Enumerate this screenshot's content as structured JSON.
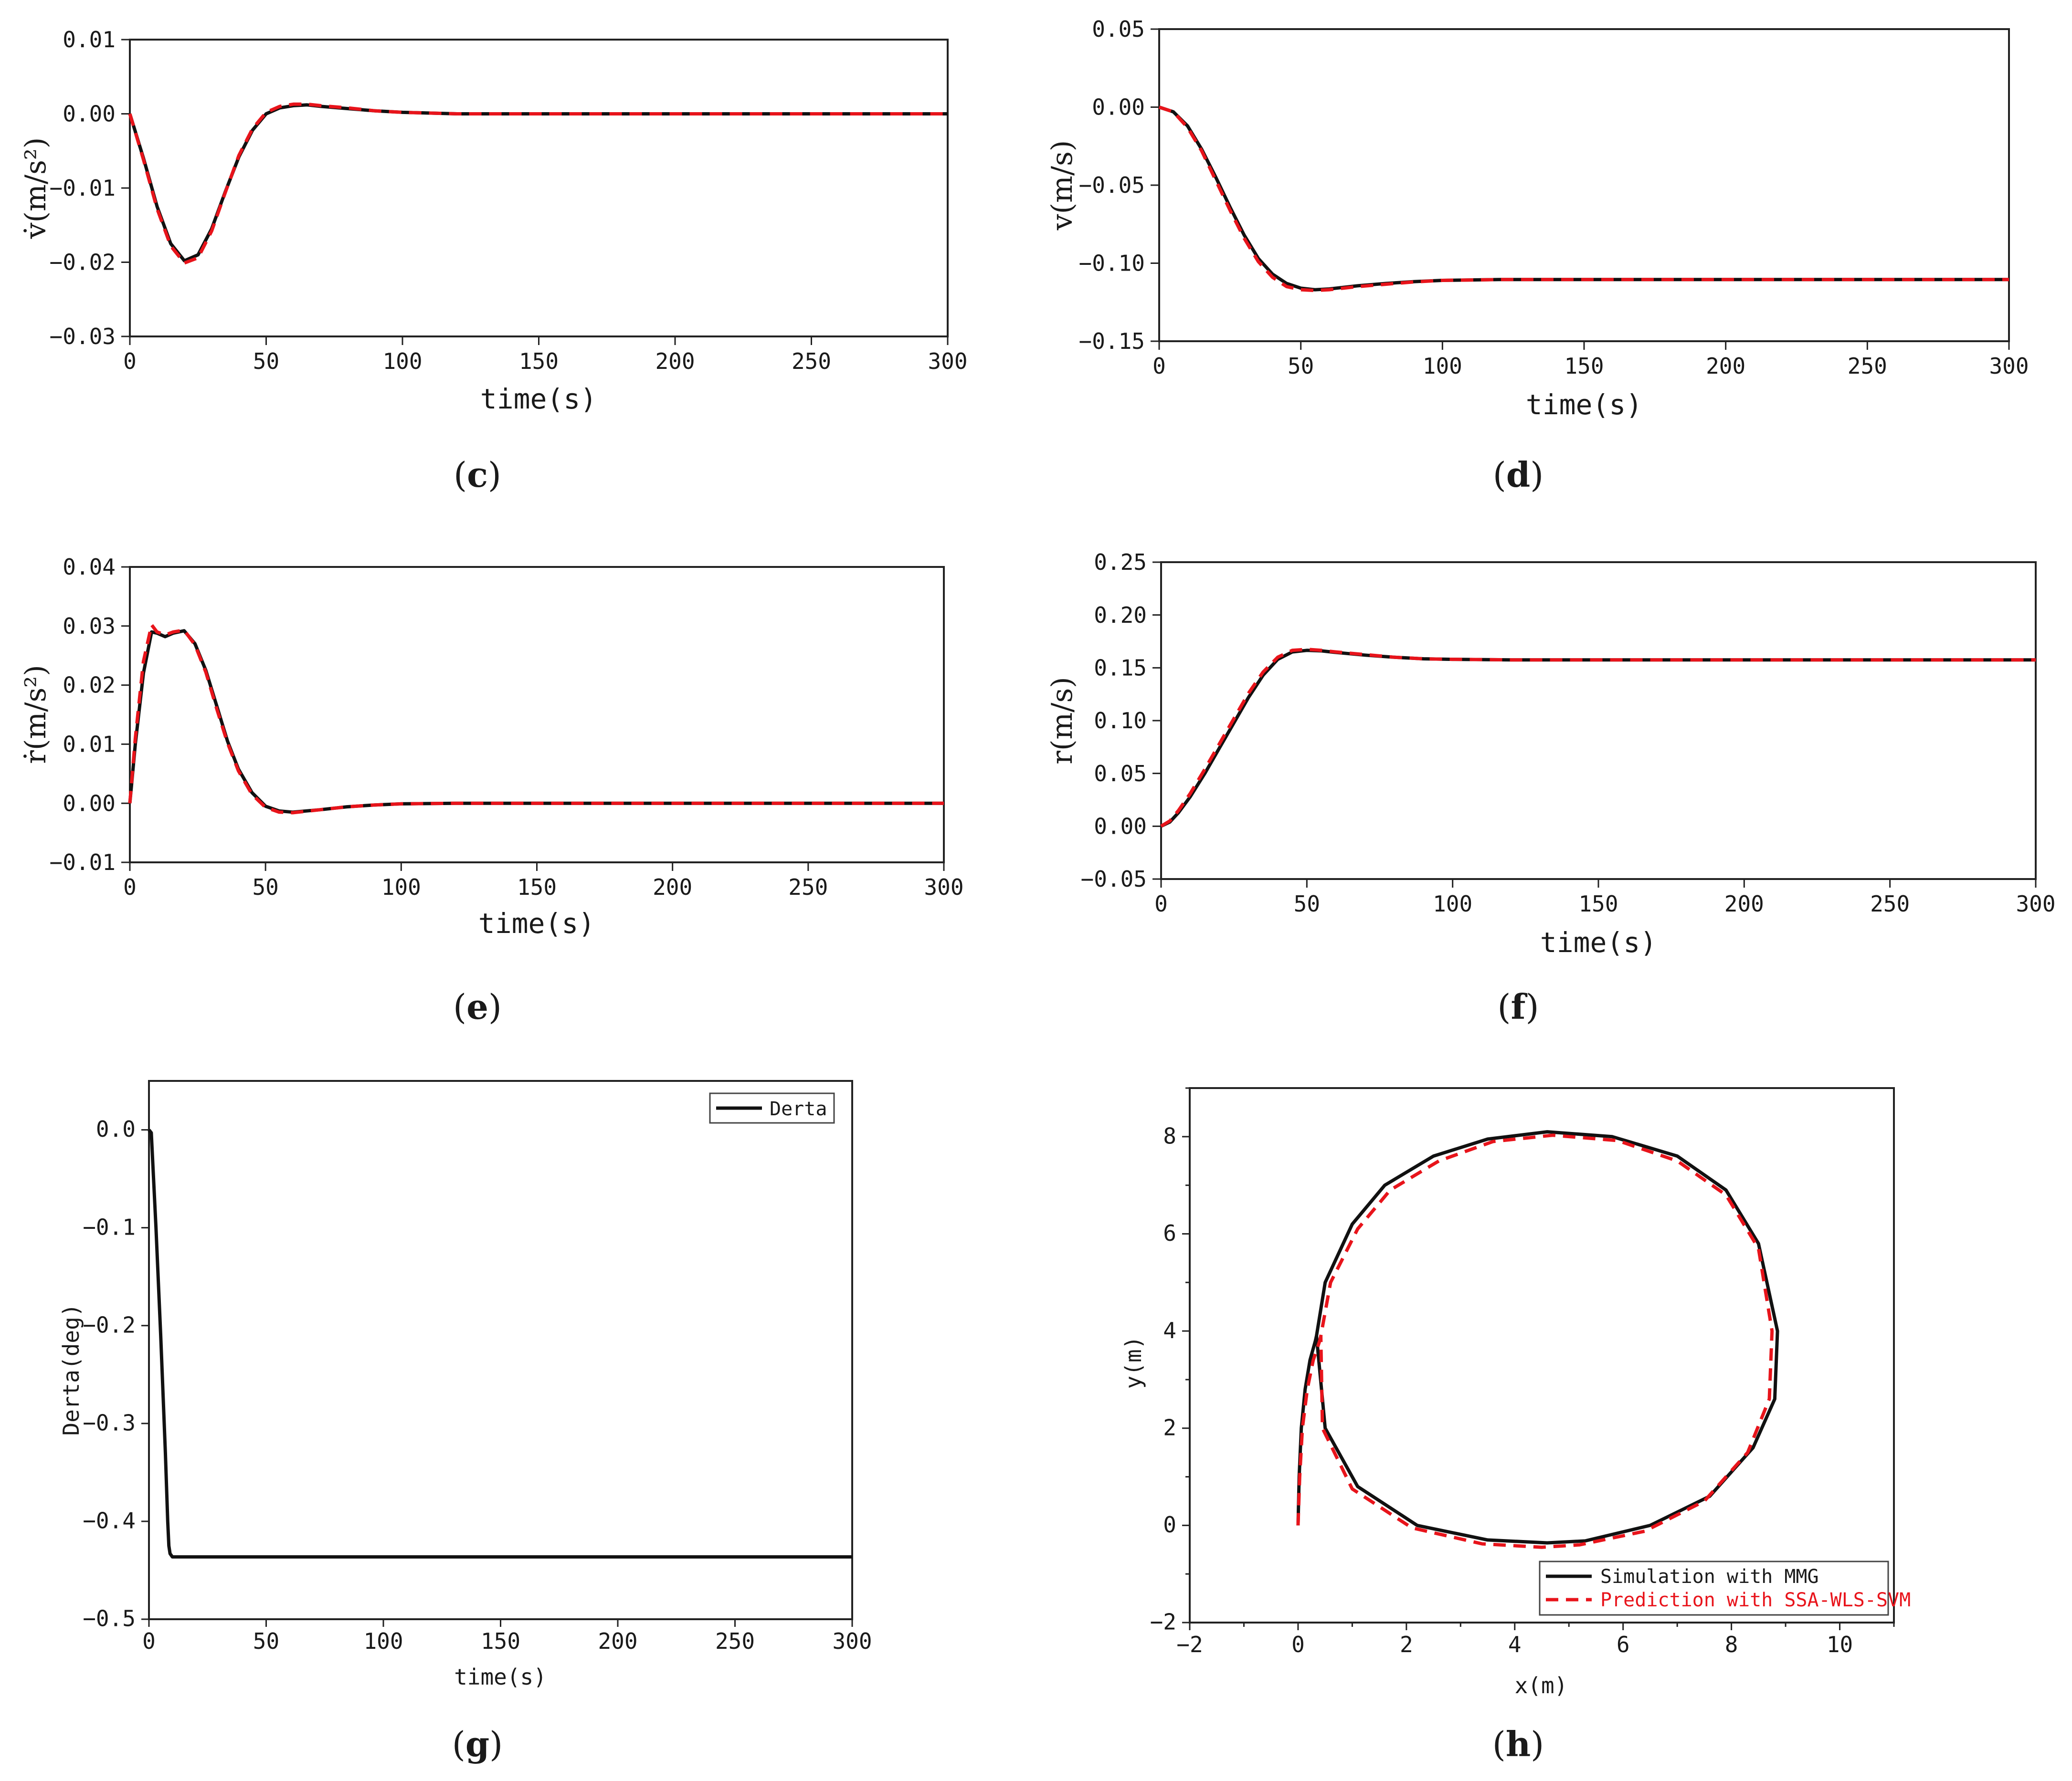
{
  "chart_data": [
    {
      "id": "c",
      "type": "line",
      "caption_letter": "c",
      "xlabel": "time(s)",
      "ylabel": "v̇(m/s²)",
      "xlim": [
        0,
        300
      ],
      "ylim": [
        -0.03,
        0.01
      ],
      "x_ticks": [
        "0",
        "50",
        "100",
        "150",
        "200",
        "250",
        "300"
      ],
      "y_ticks": [
        "0.01",
        "0.00",
        "−0.01",
        "−0.02",
        "−0.03"
      ],
      "series": [
        {
          "color": "#111111",
          "style": "solid",
          "x": [
            0,
            5,
            10,
            15,
            20,
            25,
            30,
            35,
            40,
            45,
            50,
            55,
            60,
            65,
            70,
            80,
            90,
            100,
            120,
            150,
            200,
            300
          ],
          "y": [
            0,
            -0.006,
            -0.0125,
            -0.0175,
            -0.0198,
            -0.019,
            -0.0155,
            -0.0105,
            -0.0058,
            -0.0022,
            0.0,
            0.0008,
            0.0011,
            0.0012,
            0.001,
            0.0007,
            0.0004,
            0.0002,
            0.0,
            0.0,
            0.0,
            0.0
          ]
        },
        {
          "color": "#e8141b",
          "style": "dashed",
          "x": [
            0,
            5,
            10,
            15,
            20,
            25,
            30,
            35,
            40,
            45,
            50,
            55,
            60,
            65,
            70,
            80,
            90,
            100,
            120,
            150,
            200,
            300
          ],
          "y": [
            0,
            -0.0062,
            -0.0128,
            -0.0178,
            -0.0201,
            -0.0194,
            -0.0158,
            -0.0106,
            -0.0056,
            -0.002,
            0.0002,
            0.001,
            0.0013,
            0.0013,
            0.0011,
            0.0008,
            0.0004,
            0.0002,
            0.0,
            0.0,
            0.0,
            0.0
          ]
        }
      ]
    },
    {
      "id": "d",
      "type": "line",
      "caption_letter": "d",
      "xlabel": "time(s)",
      "ylabel": "v(m/s)",
      "xlim": [
        0,
        300
      ],
      "ylim": [
        -0.15,
        0.05
      ],
      "x_ticks": [
        "0",
        "50",
        "100",
        "150",
        "200",
        "250",
        "300"
      ],
      "y_ticks": [
        "0.05",
        "0.00",
        "−0.05",
        "−0.10",
        "−0.15"
      ],
      "series": [
        {
          "color": "#111111",
          "style": "solid",
          "x": [
            0,
            5,
            10,
            15,
            20,
            25,
            30,
            35,
            40,
            45,
            50,
            55,
            60,
            70,
            80,
            90,
            100,
            120,
            150,
            200,
            300
          ],
          "y": [
            0,
            -0.003,
            -0.012,
            -0.027,
            -0.045,
            -0.064,
            -0.082,
            -0.097,
            -0.107,
            -0.113,
            -0.116,
            -0.117,
            -0.1165,
            -0.1145,
            -0.113,
            -0.1118,
            -0.111,
            -0.1105,
            -0.1105,
            -0.1105,
            -0.1105
          ]
        },
        {
          "color": "#e8141b",
          "style": "dashed",
          "x": [
            0,
            5,
            10,
            15,
            20,
            25,
            30,
            35,
            40,
            45,
            50,
            55,
            60,
            70,
            80,
            90,
            100,
            120,
            150,
            200,
            300
          ],
          "y": [
            0,
            -0.003,
            -0.013,
            -0.028,
            -0.047,
            -0.066,
            -0.084,
            -0.099,
            -0.109,
            -0.115,
            -0.117,
            -0.1175,
            -0.117,
            -0.115,
            -0.1135,
            -0.112,
            -0.111,
            -0.1105,
            -0.1105,
            -0.1105,
            -0.1105
          ]
        }
      ]
    },
    {
      "id": "e",
      "type": "line",
      "caption_letter": "e",
      "xlabel": "time(s)",
      "ylabel": "ṙ(m/s²)",
      "xlim": [
        0,
        300
      ],
      "ylim": [
        -0.01,
        0.04
      ],
      "x_ticks": [
        "0",
        "50",
        "100",
        "150",
        "200",
        "250",
        "300"
      ],
      "y_ticks": [
        "0.04",
        "0.03",
        "0.02",
        "0.01",
        "0.00",
        "−0.01"
      ],
      "series": [
        {
          "color": "#111111",
          "style": "solid",
          "x": [
            0,
            2,
            5,
            8,
            10,
            13,
            16,
            20,
            24,
            28,
            32,
            36,
            40,
            45,
            50,
            55,
            60,
            70,
            80,
            90,
            100,
            120,
            150,
            200,
            300
          ],
          "y": [
            0,
            0.01,
            0.022,
            0.029,
            0.0288,
            0.0282,
            0.0288,
            0.0292,
            0.027,
            0.0225,
            0.0165,
            0.0105,
            0.0058,
            0.0018,
            -0.0005,
            -0.0013,
            -0.0015,
            -0.0011,
            -0.0006,
            -0.0003,
            -0.0001,
            0.0,
            0.0,
            0.0,
            0.0
          ]
        },
        {
          "color": "#e8141b",
          "style": "dashed",
          "x": [
            0,
            2,
            5,
            8,
            10,
            13,
            16,
            20,
            24,
            28,
            32,
            36,
            40,
            45,
            50,
            55,
            60,
            70,
            80,
            90,
            100,
            120,
            150,
            200,
            300
          ],
          "y": [
            0,
            0.011,
            0.024,
            0.0302,
            0.029,
            0.0285,
            0.029,
            0.0293,
            0.0268,
            0.0222,
            0.016,
            0.0102,
            0.0055,
            0.0015,
            -0.0007,
            -0.0015,
            -0.0016,
            -0.0011,
            -0.0006,
            -0.0003,
            -0.0001,
            0.0,
            0.0,
            0.0,
            0.0
          ]
        }
      ]
    },
    {
      "id": "f",
      "type": "line",
      "caption_letter": "f",
      "xlabel": "time(s)",
      "ylabel": "r(m/s)",
      "xlim": [
        0,
        300
      ],
      "ylim": [
        -0.05,
        0.25
      ],
      "x_ticks": [
        "0",
        "50",
        "100",
        "150",
        "200",
        "250",
        "300"
      ],
      "y_ticks": [
        "0.25",
        "0.20",
        "0.15",
        "0.10",
        "0.05",
        "0.00",
        "−0.05"
      ],
      "series": [
        {
          "color": "#111111",
          "style": "solid",
          "x": [
            0,
            3,
            6,
            10,
            15,
            20,
            25,
            30,
            35,
            40,
            45,
            50,
            55,
            60,
            70,
            80,
            90,
            100,
            120,
            150,
            200,
            300
          ],
          "y": [
            0,
            0.004,
            0.013,
            0.028,
            0.05,
            0.074,
            0.098,
            0.122,
            0.143,
            0.158,
            0.165,
            0.1665,
            0.166,
            0.1645,
            0.162,
            0.16,
            0.1585,
            0.158,
            0.1575,
            0.1575,
            0.1575,
            0.1575
          ]
        },
        {
          "color": "#e8141b",
          "style": "dashed",
          "x": [
            0,
            3,
            6,
            10,
            15,
            20,
            25,
            30,
            35,
            40,
            45,
            50,
            55,
            60,
            70,
            80,
            90,
            100,
            120,
            150,
            200,
            300
          ],
          "y": [
            0,
            0.005,
            0.015,
            0.031,
            0.054,
            0.078,
            0.102,
            0.126,
            0.146,
            0.16,
            0.1665,
            0.1675,
            0.1665,
            0.165,
            0.1625,
            0.16,
            0.1585,
            0.158,
            0.1575,
            0.1575,
            0.1575,
            0.1575
          ]
        }
      ]
    },
    {
      "id": "g",
      "type": "line",
      "caption_letter": "g",
      "xlabel": "time(s)",
      "ylabel": "Derta(deg)",
      "xlim": [
        0,
        300
      ],
      "ylim": [
        -0.5,
        0.05
      ],
      "x_ticks": [
        "0",
        "50",
        "100",
        "150",
        "200",
        "250",
        "300"
      ],
      "y_ticks": [
        "0.0",
        "−0.1",
        "−0.2",
        "−0.3",
        "−0.4",
        "−0.5"
      ],
      "legend": {
        "position": "top-right",
        "entries": [
          "Derta"
        ]
      },
      "series": [
        {
          "name": "Derta",
          "color": "#111111",
          "style": "solid",
          "x": [
            0,
            1,
            3,
            5,
            7,
            8,
            8.5,
            9,
            10,
            20,
            100,
            200,
            300
          ],
          "y": [
            0,
            -0.003,
            -0.1,
            -0.21,
            -0.33,
            -0.4,
            -0.425,
            -0.433,
            -0.4363,
            -0.4363,
            -0.4363,
            -0.4363,
            -0.4363
          ]
        }
      ]
    },
    {
      "id": "h",
      "type": "line",
      "caption_letter": "h",
      "xlabel": "x(m)",
      "ylabel": "y(m)",
      "xlim": [
        -2,
        11
      ],
      "ylim": [
        -2,
        9
      ],
      "x_ticks": [
        "−2",
        "0",
        "2",
        "4",
        "6",
        "8",
        "10"
      ],
      "y_ticks": [
        "8",
        "6",
        "4",
        "2",
        "0",
        "−2"
      ],
      "legend": {
        "position": "bottom-right",
        "entries": [
          "Simulation with MMG",
          "Prediction with SSA-WLS-SVM"
        ]
      },
      "series": [
        {
          "name": "Simulation with MMG",
          "color": "#111111",
          "style": "solid",
          "x": [
            0.0,
            0.02,
            0.06,
            0.13,
            0.22,
            0.32,
            0.34,
            0.5,
            1.0,
            1.6,
            2.5,
            3.5,
            4.6,
            5.8,
            7.0,
            7.9,
            8.5,
            8.85,
            8.8,
            8.4,
            7.6,
            6.5,
            5.3,
            4.6,
            3.5,
            2.2,
            1.1,
            0.5,
            0.34
          ],
          "y": [
            0.0,
            1.0,
            2.0,
            2.8,
            3.4,
            3.8,
            3.9,
            5.0,
            6.2,
            7.0,
            7.6,
            7.95,
            8.1,
            8.0,
            7.6,
            6.9,
            5.8,
            4.0,
            2.6,
            1.6,
            0.6,
            0.0,
            -0.32,
            -0.36,
            -0.3,
            0.0,
            0.8,
            2.0,
            3.9
          ]
        },
        {
          "name": "Prediction with SSA-WLS-SVM",
          "color": "#e8141b",
          "style": "dashed",
          "x": [
            0.0,
            0.03,
            0.08,
            0.17,
            0.28,
            0.4,
            0.42,
            0.6,
            1.1,
            1.7,
            2.6,
            3.6,
            4.7,
            5.9,
            7.0,
            7.9,
            8.5,
            8.75,
            8.7,
            8.3,
            7.5,
            6.4,
            5.2,
            4.5,
            3.4,
            2.1,
            1.0,
            0.45,
            0.42
          ],
          "y": [
            0.0,
            1.0,
            2.0,
            2.8,
            3.4,
            3.8,
            3.9,
            5.0,
            6.1,
            6.9,
            7.5,
            7.9,
            8.03,
            7.92,
            7.5,
            6.8,
            5.7,
            4.0,
            2.6,
            1.5,
            0.5,
            -0.12,
            -0.4,
            -0.45,
            -0.38,
            -0.05,
            0.75,
            2.0,
            3.9
          ]
        }
      ]
    }
  ]
}
